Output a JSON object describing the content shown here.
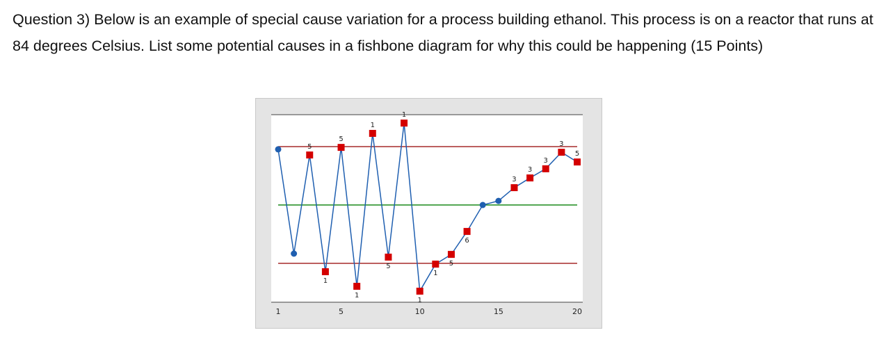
{
  "question": {
    "text": "Question 3) Below is an example of special cause variation for a process building ethanol. This process is on a reactor that runs at 84 degrees Celsius. List some potential causes in a fishbone diagram for why this could be happening (15 Points)"
  },
  "chart_data": {
    "type": "line",
    "title": "",
    "xlabel": "",
    "ylabel": "",
    "x": [
      1,
      2,
      3,
      4,
      5,
      6,
      7,
      8,
      9,
      10,
      11,
      12,
      13,
      14,
      15,
      16,
      17,
      18,
      19,
      20
    ],
    "x_ticks": [
      "1",
      "5",
      "10",
      "15",
      "20"
    ],
    "x_tick_values": [
      1,
      5,
      10,
      15,
      20
    ],
    "y": [
      2.86,
      -2.5,
      2.57,
      -3.43,
      2.96,
      -4.18,
      3.68,
      -2.68,
      4.21,
      -4.43,
      -3.04,
      -2.54,
      -1.36,
      0,
      0.21,
      0.89,
      1.39,
      1.86,
      2.71,
      2.21
    ],
    "out_of_control": [
      false,
      false,
      true,
      true,
      true,
      true,
      true,
      true,
      true,
      true,
      true,
      true,
      true,
      false,
      false,
      true,
      true,
      true,
      true,
      true
    ],
    "rule_labels": [
      "",
      "",
      "5",
      "1",
      "5",
      "1",
      "1",
      "5",
      "1",
      "1",
      "1",
      "5",
      "6",
      "",
      "",
      "3",
      "3",
      "3",
      "3",
      "5"
    ],
    "center_line": 0,
    "upper_control_limit": 3,
    "lower_control_limit": -3,
    "y_axis_labels_shown": false,
    "grid": false,
    "colors": {
      "line": "#1f5fb0",
      "in_control_marker": "#1f5fb0",
      "out_of_control_marker": "#d40000",
      "center_line": "#1a8a1a",
      "control_limits": "#a52a2a",
      "frame": "#e4e4e4"
    }
  }
}
